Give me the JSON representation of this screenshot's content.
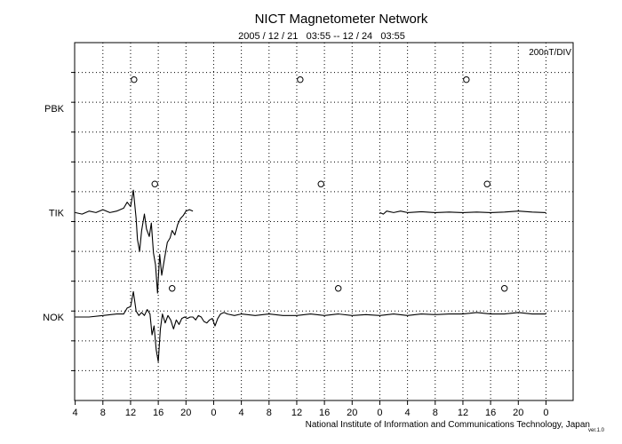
{
  "chart_data": {
    "type": "line",
    "title": "NICT Magnetometer Network",
    "subtitle": "2005 / 12 / 21   03:55 -- 12 / 24   03:55",
    "scale_label": "200nT/DIV",
    "credit": "National Institute of Information and Communications Technology, Japan",
    "credit_tag": "ver.1.0",
    "xlabel": "",
    "ylabel": "",
    "grid": true,
    "x_unit": "hours since 2005-12-21 04:00",
    "xlim": [
      -0.08,
      71.92
    ],
    "x_ticks": [
      {
        "x": 0,
        "label": "4"
      },
      {
        "x": 4,
        "label": "8"
      },
      {
        "x": 8,
        "label": "12"
      },
      {
        "x": 12,
        "label": "16"
      },
      {
        "x": 16,
        "label": "20"
      },
      {
        "x": 20,
        "label": "0"
      },
      {
        "x": 24,
        "label": "4"
      },
      {
        "x": 28,
        "label": "8"
      },
      {
        "x": 32,
        "label": "12"
      },
      {
        "x": 36,
        "label": "16"
      },
      {
        "x": 40,
        "label": "20"
      },
      {
        "x": 44,
        "label": "0"
      },
      {
        "x": 48,
        "label": "4"
      },
      {
        "x": 52,
        "label": "8"
      },
      {
        "x": 56,
        "label": "12"
      },
      {
        "x": 60,
        "label": "16"
      },
      {
        "x": 64,
        "label": "20"
      },
      {
        "x": 68,
        "label": "0"
      }
    ],
    "y_unit": "divisions (200 nT each)",
    "ylim": [
      -12,
      0
    ],
    "stations": [
      {
        "name": "PBK",
        "baseline": -2.2,
        "local_noon_marks": [
          8.5,
          32.5,
          56.5
        ],
        "series": []
      },
      {
        "name": "TIK",
        "baseline": -5.7,
        "local_noon_marks": [
          11.5,
          35.5,
          59.5
        ],
        "series": [
          {
            "x": [
              0,
              1,
              2,
              3,
              4,
              5,
              6,
              7,
              7.5,
              8,
              8.4,
              8.8,
              9,
              9.3,
              9.6,
              10,
              10.3,
              10.7,
              11,
              11.3,
              11.6,
              11.9,
              12.2,
              12.5,
              12.9,
              13.3,
              13.7,
              14,
              14.4,
              14.8,
              15.2,
              15.6,
              16,
              16.5,
              17
            ],
            "y": [
              0,
              -0.05,
              0.05,
              0,
              0.1,
              0,
              0.05,
              0.15,
              0.35,
              0.2,
              0.75,
              -0.2,
              -0.9,
              -1.3,
              -0.6,
              -0.05,
              -0.55,
              -0.8,
              -0.35,
              -1.35,
              -1.75,
              -2.7,
              -1.4,
              -2.1,
              -1.55,
              -1.0,
              -0.85,
              -0.6,
              -0.75,
              -0.4,
              -0.2,
              -0.1,
              0.05,
              0.1,
              0.05
            ]
          },
          {
            "x": [
              44,
              44.5,
              45,
              46,
              47,
              48,
              50,
              52,
              54,
              56,
              58,
              60,
              62,
              64,
              66,
              68
            ],
            "y": [
              0,
              -0.05,
              0.05,
              0,
              0.05,
              0,
              0.03,
              0,
              0.02,
              0,
              0.02,
              0,
              0.02,
              0.05,
              0.02,
              0
            ]
          }
        ]
      },
      {
        "name": "NOK",
        "baseline": -9.2,
        "local_noon_marks": [
          14,
          38,
          62
        ],
        "series": [
          {
            "x": [
              0,
              2,
              4,
              6,
              7,
              7.5,
              8,
              8.4,
              8.8,
              9.2,
              9.6,
              10,
              10.4,
              10.8,
              11.1,
              11.4,
              11.7,
              12,
              12.3,
              12.6,
              13,
              13.4,
              13.8,
              14.2,
              14.6,
              15,
              15.4,
              15.8,
              16.2,
              16.6,
              17,
              17.4,
              17.8,
              18.2,
              18.6,
              19,
              19.4,
              19.8,
              20.2,
              20.6,
              21,
              21.5,
              22,
              23,
              24,
              26,
              28,
              30,
              32,
              34,
              36,
              38,
              40,
              42,
              44,
              46,
              48,
              50,
              52,
              54,
              56,
              58,
              60,
              62,
              64,
              66,
              68
            ],
            "y": [
              0,
              0,
              0.05,
              0.1,
              0.1,
              0.3,
              0.35,
              0.85,
              0.2,
              0.05,
              0.15,
              0.05,
              0.25,
              0.1,
              -0.6,
              -0.3,
              -1.1,
              -1.5,
              -0.4,
              0.1,
              -0.2,
              0.05,
              -0.1,
              -0.4,
              -0.1,
              -0.25,
              -0.05,
              0,
              -0.05,
              0,
              0,
              -0.1,
              0.05,
              0,
              -0.15,
              -0.2,
              -0.1,
              -0.05,
              -0.3,
              -0.05,
              0.1,
              0.15,
              0.1,
              0.05,
              0.1,
              0.05,
              0.1,
              0.05,
              0.05,
              0.1,
              0.05,
              0.1,
              0.05,
              0.08,
              0.05,
              0.1,
              0.05,
              0.1,
              0.08,
              0.1,
              0.1,
              0.15,
              0.1,
              0.1,
              0.15,
              0.1,
              0.1
            ]
          }
        ]
      }
    ]
  }
}
